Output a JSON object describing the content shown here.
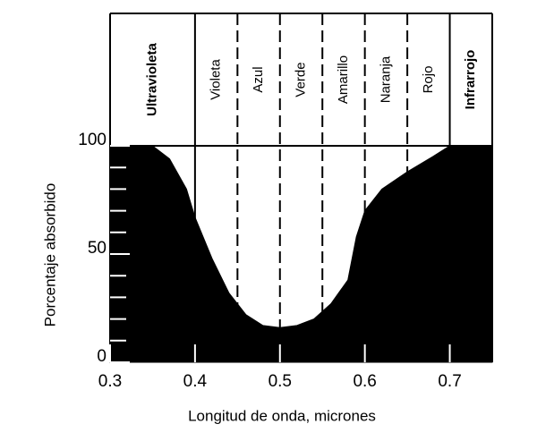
{
  "chart_data": {
    "type": "area",
    "x_label": "Longitud de onda, micrones",
    "y_label": "Porcentaje absorbido",
    "x": [
      0.3,
      0.35,
      0.37,
      0.39,
      0.4,
      0.42,
      0.44,
      0.46,
      0.48,
      0.5,
      0.52,
      0.54,
      0.56,
      0.58,
      0.59,
      0.6,
      0.62,
      0.65,
      0.68,
      0.7,
      0.75
    ],
    "values": [
      100,
      100,
      94,
      80,
      67,
      48,
      32,
      22,
      17,
      16,
      17,
      20,
      27,
      38,
      58,
      70,
      80,
      88,
      95,
      100,
      100
    ],
    "color": "#000000",
    "xlim": [
      0.3,
      0.75
    ],
    "ylim": [
      0,
      100
    ],
    "xticks": [
      0.3,
      0.4,
      0.5,
      0.6,
      0.7
    ],
    "yticks": [
      0,
      50,
      100
    ],
    "minor_yticks": [
      10,
      20,
      30,
      40,
      60,
      70,
      80,
      90
    ],
    "bands": [
      {
        "label": "Ultravioleta",
        "from": 0.3,
        "to": 0.4,
        "bold": true
      },
      {
        "label": "Violeta",
        "from": 0.4,
        "to": 0.45,
        "bold": false
      },
      {
        "label": "Azul",
        "from": 0.45,
        "to": 0.5,
        "bold": false
      },
      {
        "label": "Verde",
        "from": 0.5,
        "to": 0.55,
        "bold": false
      },
      {
        "label": "Amarillo",
        "from": 0.55,
        "to": 0.6,
        "bold": false
      },
      {
        "label": "Naranja",
        "from": 0.6,
        "to": 0.65,
        "bold": false
      },
      {
        "label": "Rojo",
        "from": 0.65,
        "to": 0.7,
        "bold": false
      },
      {
        "label": "Infrarrojo",
        "from": 0.7,
        "to": 0.75,
        "bold": true
      }
    ],
    "dividers": [
      {
        "value": 0.4,
        "style": "solid"
      },
      {
        "value": 0.45,
        "style": "dashed"
      },
      {
        "value": 0.5,
        "style": "dashed"
      },
      {
        "value": 0.55,
        "style": "dashed"
      },
      {
        "value": 0.6,
        "style": "dashed"
      },
      {
        "value": 0.65,
        "style": "dashed"
      },
      {
        "value": 0.7,
        "style": "solid"
      }
    ]
  }
}
